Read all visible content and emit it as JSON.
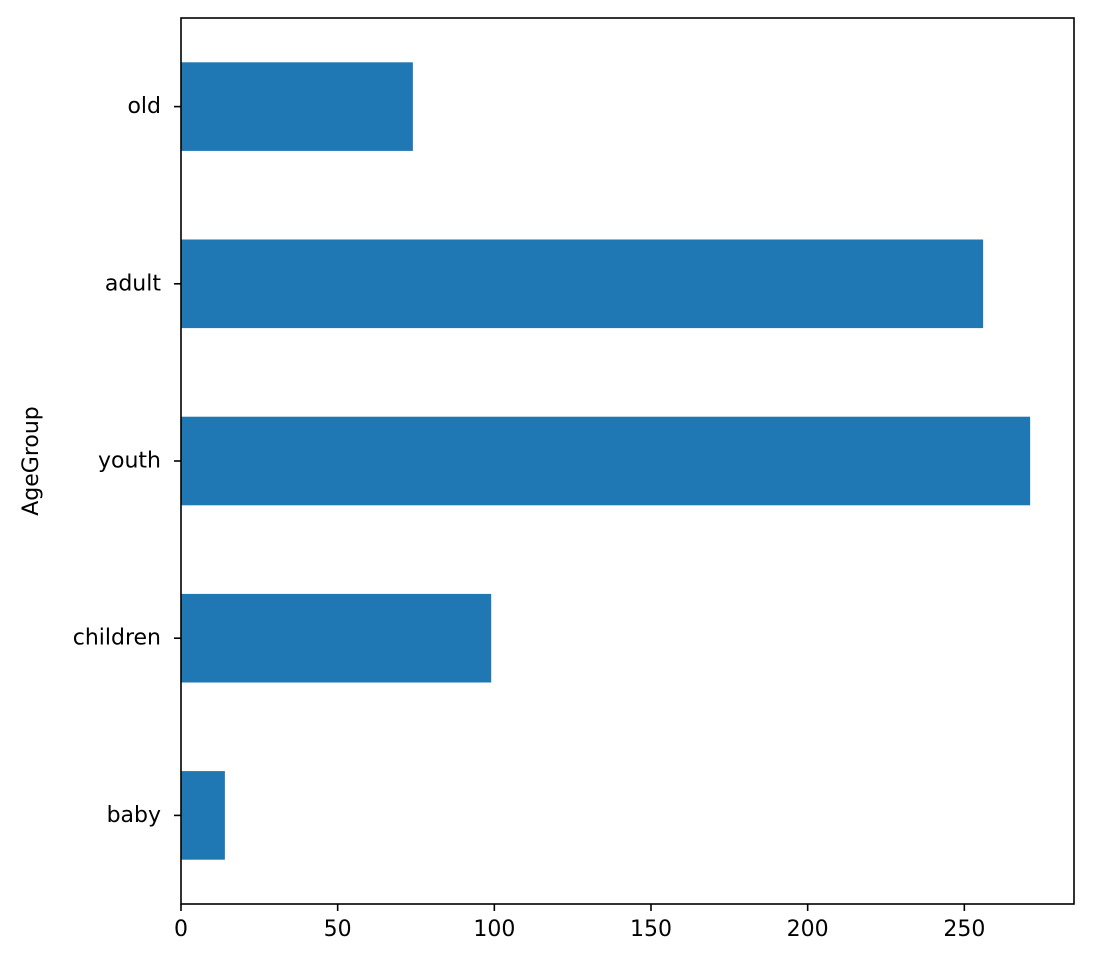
{
  "chart_data": {
    "type": "bar",
    "orientation": "horizontal",
    "categories": [
      "baby",
      "children",
      "youth",
      "adult",
      "old"
    ],
    "values": [
      14,
      99,
      271,
      256,
      74
    ],
    "title": "",
    "xlabel": "",
    "ylabel": "AgeGroup",
    "xlim": [
      0,
      285
    ],
    "xticks": [
      0,
      50,
      100,
      150,
      200,
      250
    ],
    "grid": false,
    "legend": "none",
    "bar_color": "#1f77b4"
  }
}
